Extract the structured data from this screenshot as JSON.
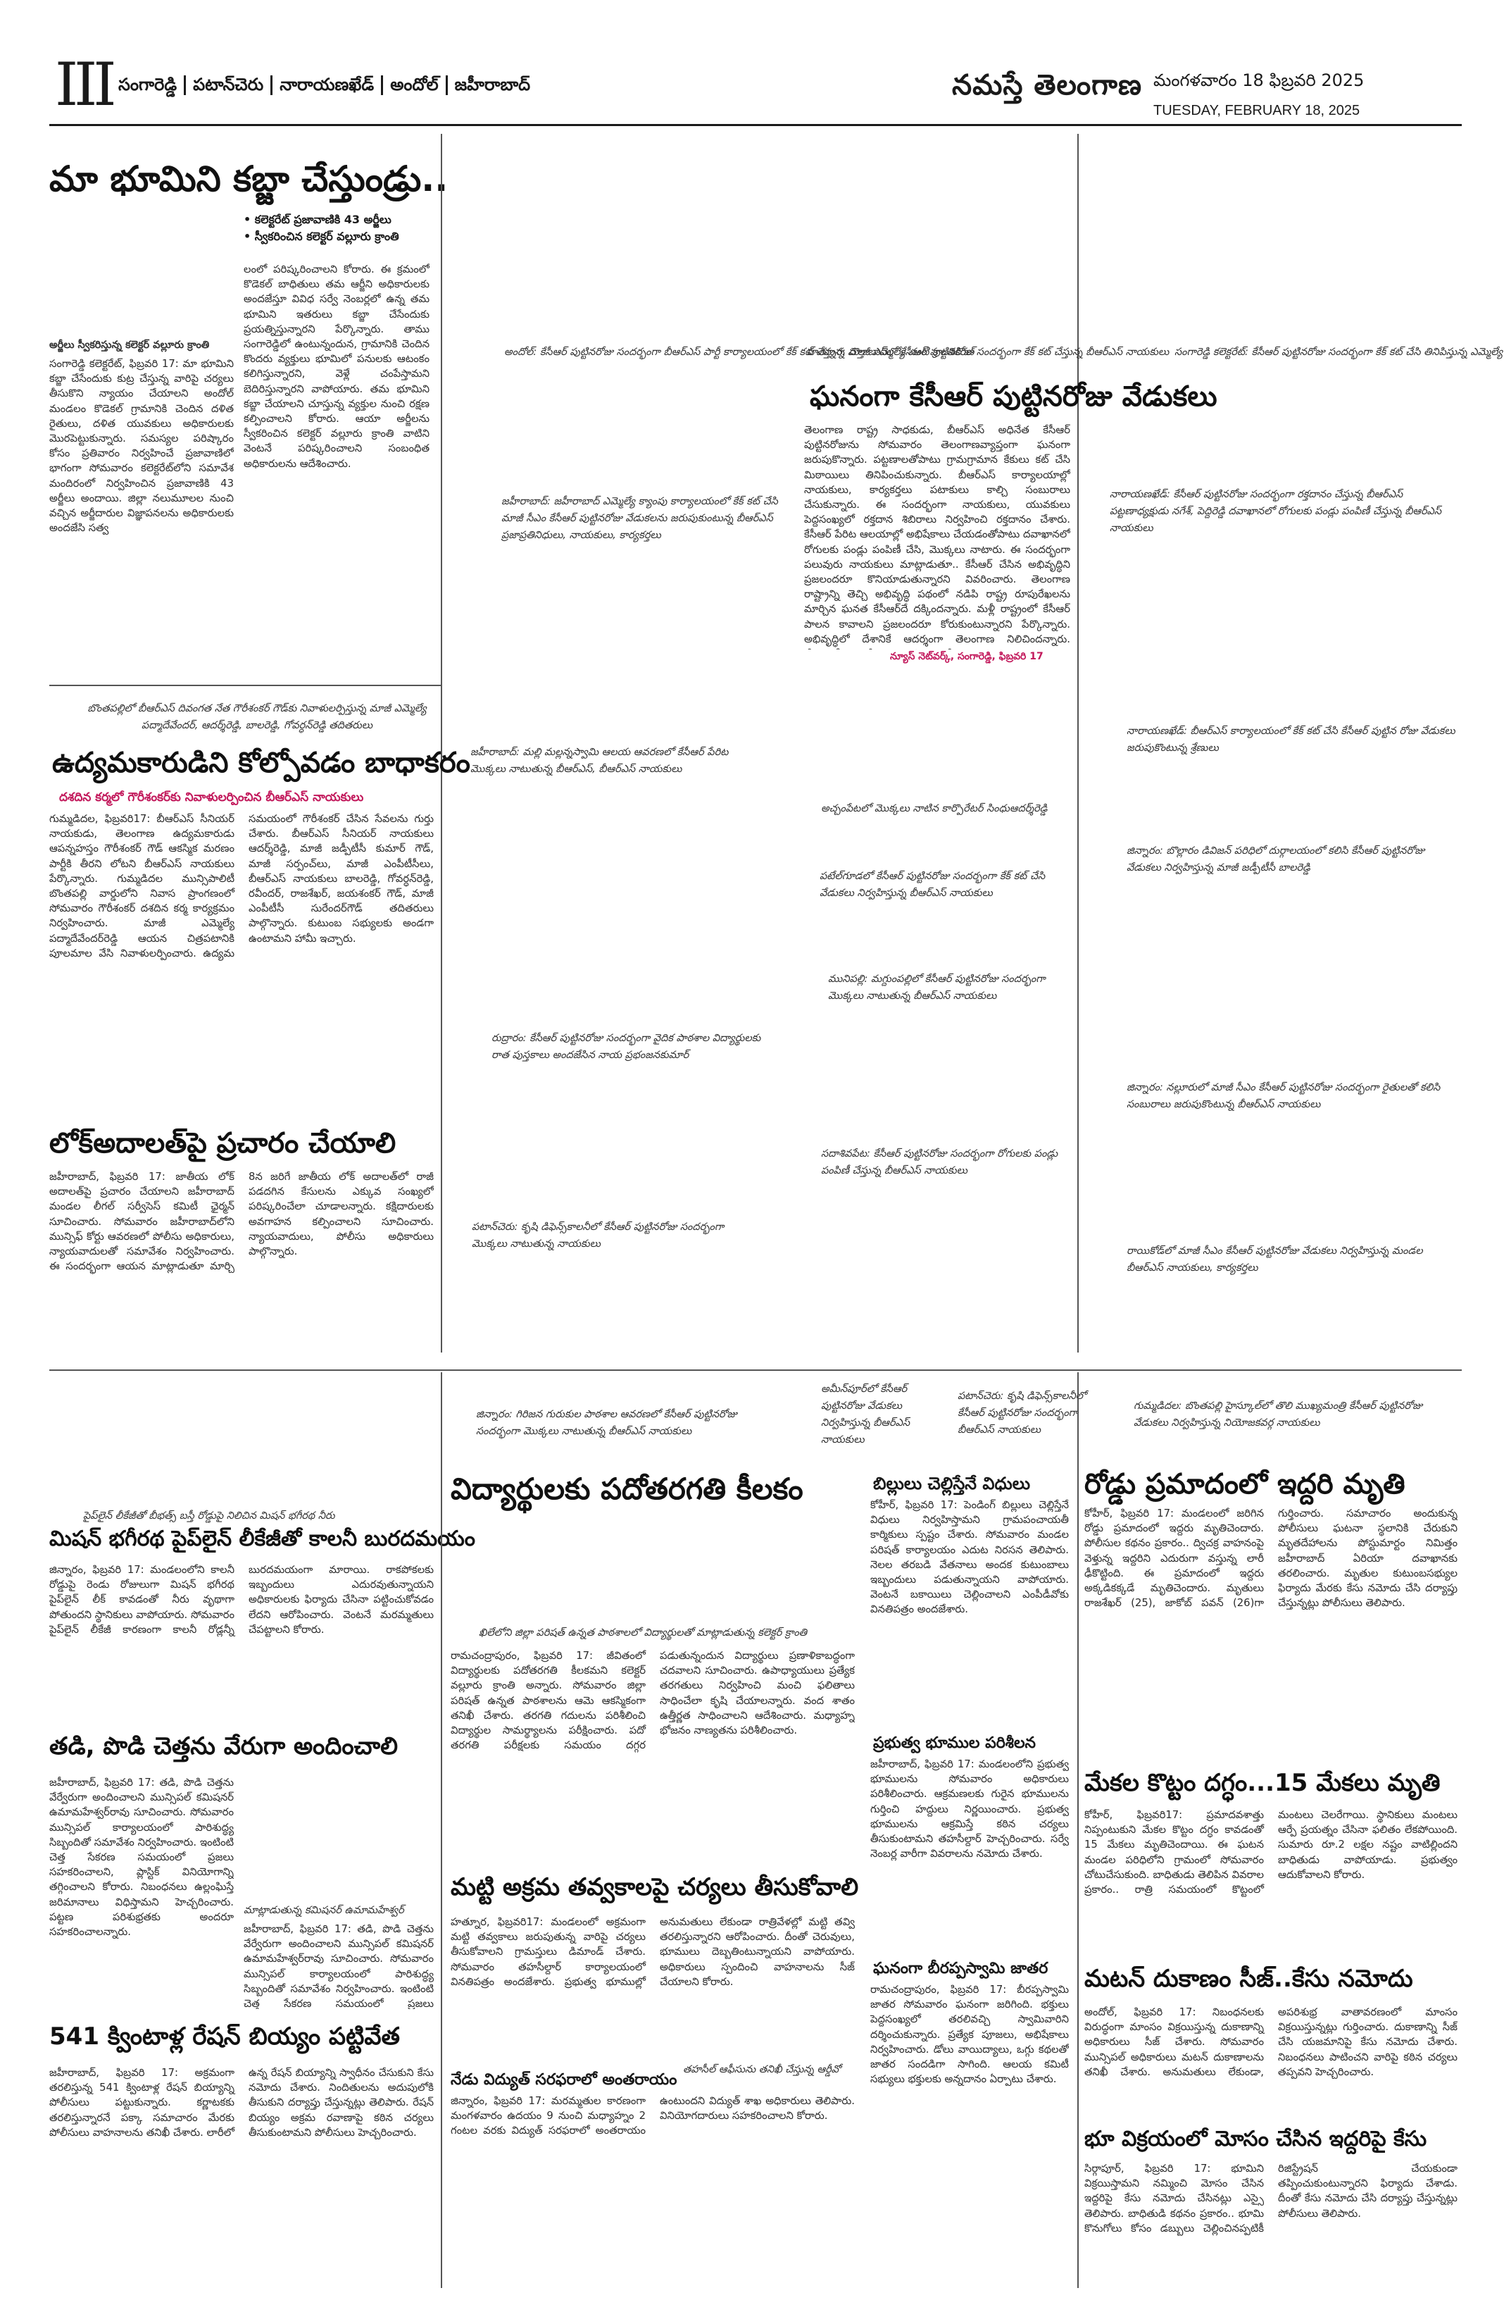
{
  "header": {
    "page_number": "III",
    "places": [
      "సంగారెడ్డి",
      "పటాన్‌చెరు",
      "నారాయణఖేడ్",
      "అందోల్",
      "జహీరాబాద్"
    ],
    "masthead": "నమస్తే తెలంగాణ",
    "date_te": "మంగళవారం 18 ఫిబ్రవరి 2025",
    "date_en": "TUESDAY, FEBRUARY 18, 2025"
  },
  "lead": {
    "headline": "మా భూమిని కబ్జా చేస్తుండ్రు..",
    "bullets": [
      "కలెక్టరేట్ ప్రజావాణికి 43 అర్జీలు",
      "స్వీకరించిన కలెక్టర్ వల్లూరు క్రాంతి"
    ],
    "photo_caption": "అర్జీలు స్వీకరిస్తున్న కలెక్టర్ వల్లూరు క్రాంతి",
    "body_col1": "సంగారెడ్డి కలెక్టరేట్, ఫిబ్రవరి 17: మా భూమిని కబ్జా చేసేందుకు కుట్ర చేస్తున్న వారిపై చర్యలు తీసుకొని న్యాయం చేయాలని అందోల్ మండలం కొడెకల్ గ్రామానికి చెందిన దళిత రైతులు, దళిత యువకులు అధికారులకు మొరపెట్టుకున్నారు. సమస్యల పరిష్కారం కోసం ప్రతివారం నిర్వహించే ప్రజావాణిలో భాగంగా సోమవారం కలెక్టరేట్‌లోని సమావేశ మందిరంలో నిర్వహించిన ప్రజావాణికి 43 అర్జీలు అందాయి. జిల్లా నలుమూలల నుంచి వచ్చిన అర్జీదారుల విజ్ఞాపనలను అధికారులకు అందజేసి సత్వ",
    "body_col2": "లంలో పరిష్కరించాలని కోరారు. ఈ క్రమంలో కొడెకల్ బాధితులు తమ ఆర్జీని అధికారులకు అందజేస్తూ వివిధ సర్వే నెంబర్లలో ఉన్న తమ భూమిని ఇతరులు కబ్జా చేసేందుకు ప్రయత్నిస్తున్నారని పేర్కొన్నారు. తాము సంగారెడ్డిలో ఉంటున్నందున, గ్రామానికి చెందిన కొందరు వ్యక్తులు భూమిలో పనులకు ఆటంకం కలిగిస్తున్నారని, వెళ్లే చంపేస్తామని బెదిరిస్తున్నారని వాపోయారు. తమ భూమిని కబ్జా చేయాలని చూస్తున్న వ్యక్తుల నుంచి రక్షణ కల్పించాలని కోరారు. ఆయా అర్జీలను స్వీకరించిన కలెక్టర్ వల్లూరు క్రాంతి వాటిని వెంటనే పరిష్కరించాలని సంబంధిత అధికారులను ఆదేశించారు."
  },
  "birthday_block": {
    "headline": "ఘనంగా కేసీఆర్ పుట్టినరోజు వేడుకలు",
    "body": "తెలంగాణ రాష్ట్ర సాధకుడు, బీఆర్‌ఎస్ అధినేత కేసీఆర్ పుట్టినరోజును సోమవారం తెలంగాణవ్యాప్తంగా ఘనంగా జరుపుకొన్నారు. పట్టణాలతోపాటు గ్రామగ్రామాన కేకులు కట్ చేసి మిఠాయిలు తినిపించుకున్నారు. బీఆర్‌ఎస్ కార్యాలయాల్లో నాయకులు, కార్యకర్తలు పటాకులు కాల్చి సంబురాలు చేసుకున్నారు. ఈ సందర్భంగా నాయకులు, యువకులు పెద్దసంఖ్యలో రక్తదాన శిబిరాలు నిర్వహించి రక్తదానం చేశారు. కేసీఆర్ పేరిట ఆలయాల్లో అభిషేకాలు చేయడంతోపాటు దవాఖానలో రోగులకు పండ్లు పంపిణీ చేసి, మొక్కలు నాటారు. ఈ సందర్భంగా పలువురు నాయకులు మాట్లాడుతూ.. కేసీఆర్ చేసిన అభివృద్ధిని ప్రజలందరూ కొనియాడుతున్నారని వివరించారు. తెలంగాణ రాష్ట్రాన్ని తెచ్చి అభివృద్ధి పథంలో నడిపి రాష్ట్ర రూపురేఖలను మార్చిన ఘనత కేసీఆర్‌దే దక్కిందన్నారు. మళ్లీ రాష్ట్రంలో కేసీఆర్ పాలన కావాలని ప్రజలందరూ కోరుకుంటున్నారని పేర్కొన్నారు. అభివృద్ధిలో దేశానికే ఆదర్శంగా తెలంగాణ నిలిచిందన్నారు. వేడుకల్లో ఎమ్మెల్యేలు, మాజీ ఎమ్మెల్యేలు, నాయకులు, కార్యకర్తలు పెద్దఎత్తున పాల్గొన్నారు.",
    "byline": "న్యూస్ నెట్‌వర్క్, సంగారెడ్డి, ఫిబ్రవరి 17"
  },
  "photo_captions": {
    "andol": "అందోల్: కేసీఆర్ పుట్టినరోజు సందర్భంగా బీఆర్‌ఎస్ పార్టీ కార్యాలయంలో కేక్ కట్ చేస్తున్న మాజీ ఎమ్మెల్యే చంటి క్రాంతికిరణ్",
    "hatnura": "హత్నూర: దౌల్తాబాద్‌లో కేసీఆర్ పుట్టినరోజు సందర్భంగా కేక్ కట్ చేస్తున్న బీఆర్‌ఎస్ నాయకులు",
    "sangareddy_coll": "సంగారెడ్డి కలెక్టరేట్: కేసీఆర్ పుట్టినరోజు సందర్భంగా కేక్ కట్ చేసి తినిపిస్తున్న ఎమ్మెల్యే చింతా ప్రభాకర్",
    "zaheerabad": "జహీరాబాద్: జహీరాబాద్ ఎమ్మెల్యే క్యాంపు కార్యాలయంలో కేక్ కట్ చేసి మాజీ సీఎం కేసీఆర్ పుట్టినరోజు వేడుకలను జరుపుకుంటున్న బీఆర్‌ఎస్ ప్రజాప్రతినిధులు, నాయకులు, కార్యకర్తలు",
    "narayankhed": "నారాయణఖేడ్: కేసీఆర్ పుట్టినరోజు సందర్భంగా రక్తదానం చేస్తున్న బీఆర్‌ఎస్ పట్టణాధ్యక్షుడు నగేశ్, పెద్దిరెడ్డి దవాఖానలో రోగులకు పండ్లు పంపిణీ చేస్తున్న బీఆర్‌ఎస్ నాయకులు",
    "nyalkal": "బొంతపల్లిలో బీఆర్‌ఎస్ దివంగత నేత గౌరీశంకర్ గౌడ్‌కు నివాళులర్పిస్తున్న మాజీ ఎమ్మెల్యే పద్మాదేవేందర్, ఆదర్శ్‌రెడ్డి, బాలరెడ్డి, గోవర్ధన్‌రెడ్డి తదితరులు",
    "zaheerabad2": "జహీరాబాద్: మల్లి మల్లన్నస్వామి ఆలయ ఆవరణలో కేసీఆర్ పేరిట మొక్కలు నాటుతున్న బీఆర్‌ఎస్, బీఆర్‌ఎస్ నాయకులు",
    "narayankhed2": "నారాయణఖేడ్: బీఆర్‌ఎస్ కార్యాలయంలో కేక్ కట్ చేసి కేసీఆర్ పుట్టిన రోజు వేడుకలు జరుపుకొంటున్న శ్రేణులు",
    "atchampet": "అచ్చంపేటలో మొక్కలు నాటిన కార్పొరేటర్ సింధుఆదర్శ్‌రెడ్డి",
    "jinnaram": "జిన్నారం: బొల్లారం డివిజన్ పరిధిలో దుర్గాలయంలో కలిసి కేసీఆర్ పుట్టినరోజు వేడుకలు నిర్వహిస్తున్న మాజీ జడ్పీటీసీ బాలరెడ్డి",
    "patancheru": "పటేల్‌గూడలో కేసీఆర్ పుట్టినరోజు సందర్భంగా కేక్ కట్ చేసి వేడుకలు నిర్వహిస్తున్న బీఆర్‌ఎస్ నాయకులు",
    "munipally": "మునిపల్లి: మగ్దుంపల్లిలో కేసీఆర్ పుట్టినరోజు సందర్భంగా మొక్కలు నాటుతున్న బీఆర్‌ఎస్ నాయకులు",
    "gummadidala": "రుద్రారం: కేసీఆర్ పుట్టినరోజు సందర్భంగా వైదిక పాఠశాల విద్యార్థులకు రాత పుస్తకాలు అందజేసిన నాయ ప్రభంజనకుమార్",
    "jinnaram2": "జిన్నారం: నల్లూరులో మాజీ సీఎం కేసీఆర్ పుట్టినరోజు సందర్భంగా రైతులతో కలిసి సంబురాలు జరుపుకొంటున్న బీఆర్‌ఎస్ నాయకులు",
    "sadasivpet": "సదాశివపేట: కేసీఆర్ పుట్టినరోజు సందర్భంగా రోగులకు పండ్లు పంపిణీ చేస్తున్న బీఆర్‌ఎస్ నాయకులు",
    "patancheru2": "పటాన్‌చెరు: కృషి డిఫెన్స్‌కాలనీలో కేసీఆర్ పుట్టినరోజు సందర్భంగా మొక్కలు నాటుతున్న నాయకులు",
    "ramachandrapuram": "రాయికోడ్‌లో మాజీ సీఎం కేసీఆర్ పుట్టినరోజు వేడుకలు నిర్వహిస్తున్న మండల బీఆర్‌ఎస్ నాయకులు, కార్యకర్తలు",
    "jinnaram3": "జిన్నారం: గిరిజన గురుకుల పాఠశాల ఆవరణలో కేసీఆర్ పుట్టినరోజు సందర్భంగా మొక్కలు నాటుతున్న బీఆర్‌ఎస్ నాయకులు",
    "ameenpur": "అమీన్‌పూర్‌లో కేసీఆర్ పుట్టినరోజు వేడుకలు నిర్వహిస్తున్న బీఆర్‌ఎస్ నాయకులు",
    "patancheru3": "పటాన్‌చెరు: కృషి డిఫెన్స్‌కాలనీలో కేసీఆర్ పుట్టినరోజు సందర్భంగా బీఆర్‌ఎస్ నాయకులు",
    "gummadidala2": "గుమ్మడిదల: బొంతపల్లి హైస్కూల్‌లో తొలి ముఖ్యమంత్రి కేసీఆర్ పుట్టినరోజు వేడుకలు నిర్వహిస్తున్న నియోజకవర్గ నాయకులు",
    "pipeline_photo": "పైప్‌లైన్ లీకేజీతో బీభత్స్ బస్తీ రోడ్డుపై నిలిచిన మిషన్ భగీరథ నీరు",
    "collector_photo": "ఖిలేలోని జిల్లా పరిషత్ ఉన్నత పాఠశాలలో విద్యార్థులతో మాట్లాడుతున్న కలెక్టర్ క్రాంతి",
    "commissioner": "మాట్లాడుతున్న కమిషనర్ ఉమామహేశ్వర్",
    "mla_photo": "తహసీల్ ఆఫీసును తనిఖీ చేస్తున్న ఆర్డీవో"
  },
  "stories": {
    "udyama": {
      "headline": "ఉద్యమకారుడిని కోల్పోవడం బాధాకరం",
      "deck": "దశదిన కర్మలో గౌరీశంకర్‌కు నివాళులర్పించిన బీఆర్‌ఎస్ నాయకులు",
      "body": "గుమ్మడిదల, ఫిబ్రవరి17: బీఆర్‌ఎస్ సీనియర్ నాయకుడు, తెలంగాణ ఉద్యమకారుడు ఆపన్నహస్తం గౌరీశంకర్ గౌడ్ ఆకస్మిక మరణం పార్టీకి తీరని లోటని బీఆర్‌ఎస్ నాయకులు పేర్కొన్నారు. గుమ్మడిదల మున్సిపాలిటీ బొంతపల్లి వార్డులోని నివాస ప్రాంగణంలో సోమవారం గౌరీశంకర్ దశదిన కర్మ కార్యక్రమం నిర్వహించారు. మాజీ ఎమ్మెల్యే పద్మాదేవేందర్‌రెడ్డి ఆయన చిత్రపటానికి పూలమాల వేసి నివాళులర్పించారు. ఉద్యమ సమయంలో గౌరీశంకర్ చేసిన సేవలను గుర్తు చేశారు. బీఆర్‌ఎస్ సీనియర్ నాయకులు ఆదర్శ్‌రెడ్డి, మాజీ జడ్పీటీసీ కుమార్ గౌడ్, మాజీ సర్పంచ్‌లు, మాజీ ఎంపీటీసీలు, బీఆర్‌ఎస్ నాయకులు బాలరెడ్డి, గోవర్ధన్‌రెడ్డి, రవీందర్, రాజశేఖర్, జయశంకర్ గౌడ్, మాజీ ఎంపీటీసీ సురేందర్‌గౌడ్ తదితరులు పాల్గొన్నారు. కుటుంబ సభ్యులకు అండగా ఉంటామని హామీ ఇచ్చారు."
    },
    "lokadalat": {
      "headline": "లోక్‌అదాలత్‌పై ప్రచారం చేయాలి",
      "body": "జహీరాబాద్, ఫిబ్రవరి 17: జాతీయ లోక్ అదాలత్‌పై ప్రచారం చేయాలని జహీరాబాద్ మండల లీగల్ సర్వీసెస్ కమిటీ ఛైర్మన్ సూచించారు. సోమవారం జహీరాబాద్‌లోని మున్సిఫ్ కోర్టు ఆవరణలో పోలీసు అధికారులు, న్యాయవాదులతో సమావేశం నిర్వహించారు. ఈ సందర్భంగా ఆయన మాట్లాడుతూ మార్చి 8న జరిగే జాతీయ లోక్ అదాలత్‌లో రాజీ పడదగిన కేసులను ఎక్కువ సంఖ్యలో పరిష్కరించేలా చూడాలన్నారు. కక్షిదారులకు అవగాహన కల్పించాలని సూచించారు. న్యాయవాదులు, పోలీసు అధికారులు పాల్గొన్నారు."
    },
    "mission": {
      "headline": "మిషన్ భగీరథ పైప్‌లైన్ లీకేజీతో కాలనీ బురదమయం",
      "body": "జిన్నారం, ఫిబ్రవరి 17: మండలంలోని కాలనీ రోడ్డుపై రెండు రోజులుగా మిషన్ భగీరథ పైప్‌లైన్ లీక్ కావడంతో నీరు వృథాగా పోతుందని స్థానికులు వాపోయారు. సోమవారం పైప్‌లైన్ లీకేజీ కారణంగా కాలనీ రోడ్లన్నీ బురదమయంగా మారాయి. రాకపోకలకు ఇబ్బందులు ఎదురవుతున్నాయని అధికారులకు ఫిర్యాదు చేసినా పట్టించుకోవడం లేదని ఆరోపించారు. వెంటనే మరమ్మతులు చేపట్టాలని కోరారు."
    },
    "toddy": {
      "headline": "తడి, పొడి చెత్తను వేరుగా అందించాలి",
      "body": "జహీరాబాద్, ఫిబ్రవరి 17: తడి, పొడి చెత్తను వేర్వేరుగా అందించాలని మున్సిపల్ కమిషనర్ ఉమామహేశ్వర్‌రావు సూచించారు. సోమవారం మున్సిపల్ కార్యాలయంలో పారిశుద్ధ్య సిబ్బందితో సమావేశం నిర్వహించారు. ఇంటింటి చెత్త సేకరణ సమయంలో ప్రజలు సహకరించాలని, ప్లాస్టిక్ వినియోగాన్ని తగ్గించాలని కోరారు. నిబంధనలు ఉల్లంఘిస్తే జరిమానాలు విధిస్తామని హెచ్చరించారు. పట్టణ పరిశుభ్రతకు అందరూ సహకరించాలన్నారు."
    },
    "ration": {
      "headline": "541 క్వింటాళ్ల రేషన్ బియ్యం పట్టివేత",
      "body": "జహీరాబాద్, ఫిబ్రవరి 17: అక్రమంగా తరలిస్తున్న 541 క్వింటాళ్ల రేషన్ బియ్యాన్ని పోలీసులు పట్టుకున్నారు. కర్ణాటకకు తరలిస్తున్నారనే పక్కా సమాచారం మేరకు పోలీసులు వాహనాలను తనిఖీ చేశారు. లారీలో ఉన్న రేషన్ బియ్యాన్ని స్వాధీనం చేసుకుని కేసు నమోదు చేశారు. నిందితులను అదుపులోకి తీసుకుని దర్యాప్తు చేస్తున్నట్లు తెలిపారు. రేషన్ బియ్యం అక్రమ రవాణాపై కఠిన చర్యలు తీసుకుంటామని పోలీసులు హెచ్చరించారు."
    },
    "students": {
      "headline": "విద్యార్థులకు పదోతరగతి కీలకం",
      "body": "రామచంద్రాపురం, ఫిబ్రవరి 17: జీవితంలో విద్యార్థులకు పదోతరగతి కీలకమని కలెక్టర్ వల్లూరు క్రాంతి అన్నారు. సోమవారం జిల్లా పరిషత్ ఉన్నత పాఠశాలను ఆమె ఆకస్మికంగా తనిఖీ చేశారు. తరగతి గదులను పరిశీలించి విద్యార్థుల సామర్థ్యాలను పరీక్షించారు. పదో తరగతి పరీక్షలకు సమయం దగ్గర పడుతున్నందున విద్యార్థులు ప్రణాళికాబద్ధంగా చదవాలని సూచించారు. ఉపాధ్యాయులు ప్రత్యేక తరగతులు నిర్వహించి మంచి ఫలితాలు సాధించేలా కృషి చేయాలన్నారు. వంద శాతం ఉత్తీర్ణత సాధించాలని ఆదేశించారు. మధ్యాహ్న భోజనం నాణ్యతను పరిశీలించారు."
    },
    "illegal": {
      "headline": "మట్టి అక్రమ తవ్వకాలపై చర్యలు తీసుకోవాలి",
      "body": "హత్నూర, ఫిబ్రవరి17: మండలంలో అక్రమంగా మట్టి తవ్వకాలు జరుపుతున్న వారిపై చర్యలు తీసుకోవాలని గ్రామస్తులు డిమాండ్ చేశారు. సోమవారం తహసీల్దార్ కార్యాలయంలో వినతిపత్రం అందజేశారు. ప్రభుత్వ భూముల్లో అనుమతులు లేకుండా రాత్రివేళల్లో మట్టి తవ్వి తరలిస్తున్నారని ఆరోపించారు. దీంతో చెరువులు, భూములు దెబ్బతింటున్నాయని వాపోయారు. అధికారులు స్పందించి వాహనాలను సీజ్ చేయాలని కోరారు."
    },
    "bills": {
      "headline": "బిల్లులు చెల్లిస్తేనే విధులు",
      "body": "కోహీర్, ఫిబ్రవరి 17: పెండింగ్ బిల్లులు చెల్లిస్తేనే విధులు నిర్వహిస్తామని గ్రామపంచాయతీ కార్మికులు స్పష్టం చేశారు. సోమవారం మండల పరిషత్ కార్యాలయం ఎదుట నిరసన తెలిపారు. నెలల తరబడి వేతనాలు అందక కుటుంబాలు ఇబ్బందులు పడుతున్నాయని వాపోయారు. వెంటనే బకాయిలు చెల్లించాలని ఎంపీడీవోకు వినతిపత్రం అందజేశారు."
    },
    "govt_land": {
      "headline": "ప్రభుత్వ భూముల పరిశీలన",
      "body": "జహీరాబాద్, ఫిబ్రవరి 17: మండలంలోని ప్రభుత్వ భూములను సోమవారం అధికారులు పరిశీలించారు. ఆక్రమణలకు గురైన భూములను గుర్తించి హద్దులు నిర్ణయించారు. ప్రభుత్వ భూములను ఆక్రమిస్తే కఠిన చర్యలు తీసుకుంటామని తహసీల్దార్ హెచ్చరించారు. సర్వే నెంబర్ల వారీగా వివరాలను నమోదు చేశారు."
    },
    "jatara": {
      "headline": "ఘనంగా బీరప్పస్వామి జాతర",
      "body": "రామచంద్రాపురం, ఫిబ్రవరి 17: బీరప్పస్వామి జాతర సోమవారం ఘనంగా జరిగింది. భక్తులు పెద్దసంఖ్యలో తరలివచ్చి స్వామివారిని దర్శించుకున్నారు. ప్రత్యేక పూజలు, అభిషేకాలు నిర్వహించారు. డోలు వాయిద్యాలు, ఒగ్గు కథలతో జాతర సందడిగా సాగింది. ఆలయ కమిటీ సభ్యులు భక్తులకు అన్నదానం ఏర్పాటు చేశారు."
    },
    "dsp": {
      "headline": "నేడు విద్యుత్ సరఫరాలో అంతరాయం",
      "body": "జిన్నారం, ఫిబ్రవరి 17: మరమ్మతుల కారణంగా మంగళవారం ఉదయం 9 నుంచి మధ్యాహ్నం 2 గంటల వరకు విద్యుత్ సరఫరాలో అంతరాయం ఉంటుందని విద్యుత్ శాఖ అధికారులు తెలిపారు. వినియోగదారులు సహకరించాలని కోరారు."
    },
    "accident": {
      "headline": "రోడ్డు ప్రమాదంలో ఇద్దరి మృతి",
      "body": "కోహీర్, ఫిబ్రవరి 17: మండలంలో జరిగిన రోడ్డు ప్రమాదంలో ఇద్దరు మృతిచెందారు. పోలీసుల కథనం ప్రకారం.. ద్విచక్ర వాహనంపై వెళ్తున్న ఇద్దరిని ఎదురుగా వస్తున్న లారీ ఢీకొట్టింది. ఈ ప్రమాదంలో ఇద్దరు అక్కడికక్కడే మృతిచెందారు. మృతులు రాజశేఖర్ (25), జాకోబ్ పవన్ (26)గా గుర్తించారు. సమాచారం అందుకున్న పోలీసులు ఘటనా స్థలానికి చేరుకుని మృతదేహాలను పోస్టుమార్టం నిమిత్తం జహీరాబాద్ ఏరియా దవాఖానకు తరలించారు. మృతుల కుటుంబసభ్యుల ఫిర్యాదు మేరకు కేసు నమోదు చేసి దర్యాప్తు చేస్తున్నట్లు పోలీసులు తెలిపారు."
    },
    "goats": {
      "headline": "మేకల కొట్టం దగ్ధం...15 మేకలు మృతి",
      "body": "కోహీర్, ఫిబ్రవరి17: ప్రమాదవశాత్తు నిప్పంటుకుని మేకల కొట్టం దగ్ధం కావడంతో 15 మేకలు మృతిచెందాయి. ఈ ఘటన మండల పరిధిలోని గ్రామంలో సోమవారం చోటుచేసుకుంది. బాధితుడు తెలిపిన వివరాల ప్రకారం.. రాత్రి సమయంలో కొట్టంలో మంటలు చెలరేగాయి. స్థానికులు మంటలు ఆర్పే ప్రయత్నం చేసినా ఫలితం లేకపోయింది. సుమారు రూ.2 లక్షల నష్టం వాటిల్లిందని బాధితుడు వాపోయాడు. ప్రభుత్వం ఆదుకోవాలని కోరారు."
    },
    "mutton": {
      "headline": "మటన్ దుకాణం సీజ్..కేసు నమోదు",
      "body": "అందోల్, ఫిబ్రవరి 17: నిబంధనలకు విరుద్ధంగా మాంసం విక్రయిస్తున్న దుకాణాన్ని అధికారులు సీజ్ చేశారు. సోమవారం మున్సిపల్ అధికారులు మటన్ దుకాణాలను తనిఖీ చేశారు. అనుమతులు లేకుండా, అపరిశుభ్ర వాతావరణంలో మాంసం విక్రయిస్తున్నట్లు గుర్తించారు. దుకాణాన్ని సీజ్ చేసి యజమానిపై కేసు నమోదు చేశారు. నిబంధనలు పాటించని వారిపై కఠిన చర్యలు తప్పవని హెచ్చరించారు."
    },
    "land_fraud": {
      "headline": "భూ విక్రయంలో మోసం చేసిన ఇద్దరిపై కేసు",
      "body": "సిర్గాపూర్, ఫిబ్రవరి 17: భూమిని విక్రయిస్తామని నమ్మించి మోసం చేసిన ఇద్దరిపై కేసు నమోదు చేసినట్లు ఎస్సై తెలిపారు. బాధితుడి కథనం ప్రకారం.. భూమి కొనుగోలు కోసం డబ్బులు చెల్లించినప్పటికీ రిజిస్ట్రేషన్ చేయకుండా తప్పించుకుంటున్నారని ఫిర్యాదు చేశాడు. దీంతో కేసు నమోదు చేసి దర్యాప్తు చేస్తున్నట్లు పోలీసులు తెలిపారు."
    }
  }
}
